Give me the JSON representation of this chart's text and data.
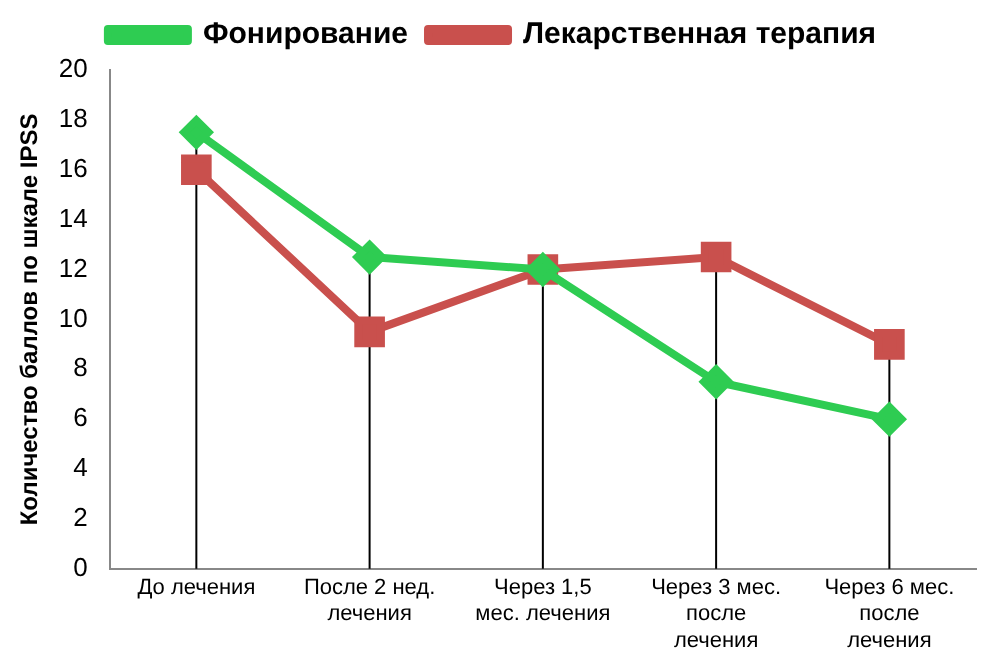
{
  "chart_data": {
    "type": "line",
    "ylabel": "Количество баллов по шкале IPSS",
    "categories": [
      "До лечения",
      "После 2 нед.\nлечения",
      "Через 1,5\nмес. лечения",
      "Через 3 мес.\nпосле\nлечения",
      "Через 6 мес.\nпосле\nлечения"
    ],
    "series": [
      {
        "name": "Фонирование",
        "color": "#2ecc52",
        "marker": "diamond",
        "values": [
          17.5,
          12.5,
          12,
          7.5,
          6
        ]
      },
      {
        "name": "Лекарственная терапия",
        "color": "#c9504d",
        "marker": "square",
        "values": [
          16,
          9.5,
          12,
          12.5,
          9
        ]
      }
    ],
    "ylim": [
      0,
      20
    ],
    "yticks": [
      0,
      2,
      4,
      6,
      8,
      10,
      12,
      14,
      16,
      18,
      20
    ],
    "grid": false,
    "ref_lines": [
      {
        "axis": "x",
        "value": "До лечения",
        "color": "#000000"
      },
      {
        "axis": "x",
        "value": "После 2 нед.\nлечения",
        "color": "#000000"
      },
      {
        "axis": "x",
        "value": "Через 1,5\nмес. лечения",
        "color": "#000000"
      },
      {
        "axis": "x",
        "value": "Через 3 мес.\nпосле\nлечения",
        "color": "#000000"
      },
      {
        "axis": "x",
        "value": "Через 6 мес.\nпосле\nлечения",
        "color": "#000000"
      }
    ],
    "legend": "top"
  }
}
